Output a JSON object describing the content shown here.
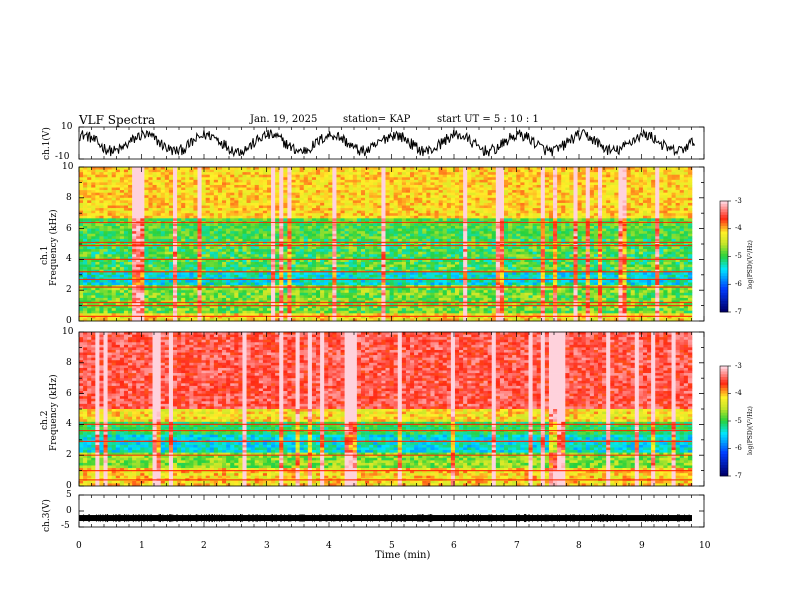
{
  "header": {
    "title": "VLF Spectra",
    "date": "Jan. 19, 2025",
    "station": "station= KAP",
    "start": "start UT =  5 : 10 : 1"
  },
  "colors": {
    "low": "#000080",
    "mid": "#22cc33",
    "high": "#ff2200",
    "peak": "#ffc8d0"
  },
  "chart_data": [
    {
      "type": "line",
      "name": "ch1-waveform",
      "ylabel": "ch.1(V)",
      "ylim": [
        -10,
        10
      ],
      "y_tick_labels": [
        "10",
        "-10"
      ],
      "xlim": [
        0,
        9.85
      ],
      "cycles_per_min": 1.0
    },
    {
      "type": "heatmap",
      "name": "ch1-spectrogram",
      "ylabel_line1": "ch.1",
      "ylabel_line2": "Frequency (kHz)",
      "ylim": [
        0,
        10
      ],
      "y_tick_labels": [
        "0",
        "2",
        "4",
        "6",
        "8",
        "10"
      ],
      "colorbar": {
        "label": "log(PSD)(V²/Hz)",
        "ticks": [
          "-3",
          "-4",
          "-5",
          "-6",
          "-7"
        ],
        "range": [
          -7,
          -3
        ]
      },
      "bands_khz": [
        0.3,
        1.0,
        1.2,
        2.2,
        2.7,
        3.2,
        4.0,
        4.9,
        5.1,
        6.4
      ]
    },
    {
      "type": "heatmap",
      "name": "ch2-spectrogram",
      "ylabel_line1": "ch.2",
      "ylabel_line2": "Frequency (kHz)",
      "ylim": [
        0,
        10
      ],
      "y_tick_labels": [
        "0",
        "2",
        "4",
        "6",
        "8",
        "10"
      ],
      "colorbar": {
        "label": "log(PSD)(V²/Hz)",
        "ticks": [
          "-3",
          "-4",
          "-5",
          "-6",
          "-7"
        ],
        "range": [
          -7,
          -3
        ]
      },
      "bands_khz": [
        0.4,
        1.0,
        2.0,
        2.9,
        3.6,
        4.0
      ]
    },
    {
      "type": "line",
      "name": "ch3-waveform",
      "ylabel": "ch.3(V)",
      "ylim": [
        -5,
        5
      ],
      "y_tick_labels": [
        "5",
        "0",
        "-5"
      ],
      "level_v": -2.2
    }
  ],
  "x_axis": {
    "label": "Time (min)",
    "xlim": [
      0,
      10
    ],
    "ticks": [
      "0",
      "1",
      "2",
      "3",
      "4",
      "5",
      "6",
      "7",
      "8",
      "9",
      "10"
    ]
  }
}
